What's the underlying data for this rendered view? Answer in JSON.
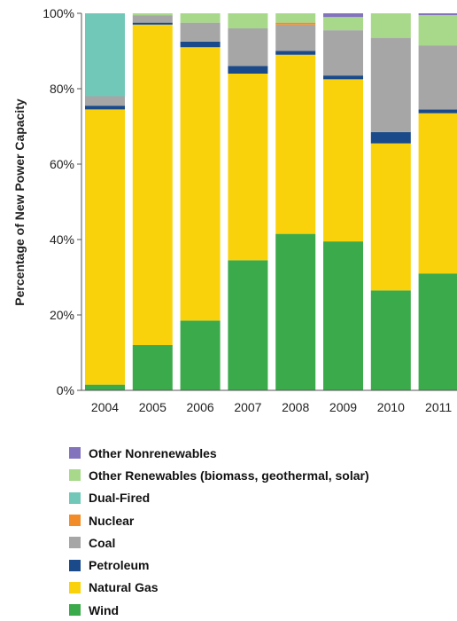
{
  "chart_data": {
    "type": "bar",
    "stacked": true,
    "title": "",
    "xlabel": "",
    "ylabel": "Percentage of New Power Capacity",
    "ylim": [
      0,
      100
    ],
    "yticks": [
      "0%",
      "20%",
      "40%",
      "60%",
      "80%",
      "100%"
    ],
    "categories": [
      "2004",
      "2005",
      "2006",
      "2007",
      "2008",
      "2009",
      "2010",
      "2011"
    ],
    "series": [
      {
        "name": "Wind",
        "color": "#3aaa4a",
        "values": [
          1.5,
          12,
          18.5,
          34.5,
          41.5,
          39.5,
          26.5,
          31
        ]
      },
      {
        "name": "Natural Gas",
        "color": "#fad20c",
        "values": [
          73,
          85,
          72.5,
          49.5,
          47.5,
          43,
          39,
          42.5
        ]
      },
      {
        "name": "Petroleum",
        "color": "#1a4a8a",
        "values": [
          1,
          0.5,
          1.5,
          2,
          1,
          1,
          3,
          1
        ]
      },
      {
        "name": "Coal",
        "color": "#a6a6a6",
        "values": [
          2.5,
          2,
          5,
          10,
          7,
          12,
          25,
          17
        ]
      },
      {
        "name": "Nuclear",
        "color": "#f28c28",
        "values": [
          0,
          0,
          0,
          0,
          0.5,
          0,
          0,
          0
        ]
      },
      {
        "name": "Dual-Fired",
        "color": "#72c8b8",
        "values": [
          22,
          0,
          0,
          0,
          0,
          0,
          0,
          0
        ]
      },
      {
        "name": "Other Renewables (biomass, geothermal, solar)",
        "color": "#a8d98a",
        "values": [
          0,
          0.5,
          2.5,
          4,
          2.5,
          3.5,
          6.5,
          8
        ]
      },
      {
        "name": "Other Nonrenewables",
        "color": "#8373bd",
        "values": [
          0,
          0,
          0,
          0,
          0,
          1,
          0,
          0.5
        ]
      }
    ],
    "legend_order": [
      "Other Nonrenewables",
      "Other Renewables (biomass, geothermal, solar)",
      "Dual-Fired",
      "Nuclear",
      "Coal",
      "Petroleum",
      "Natural Gas",
      "Wind"
    ],
    "grid": false,
    "legend_position": "bottom"
  }
}
